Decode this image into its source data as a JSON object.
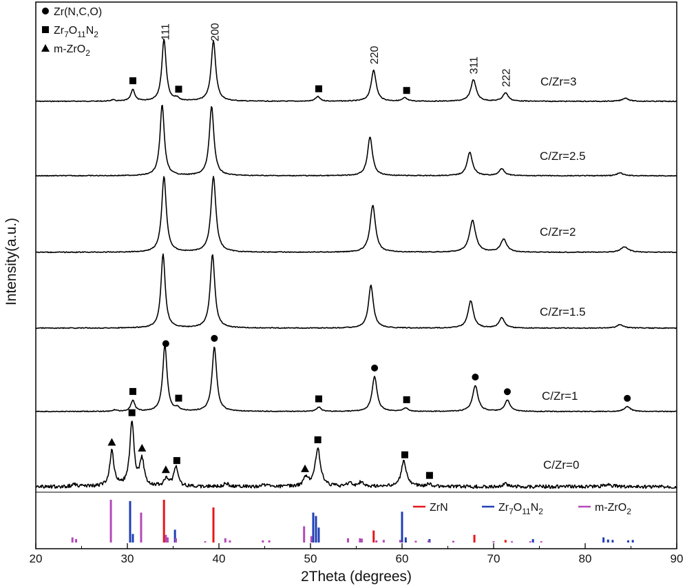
{
  "chart_data": {
    "type": "line",
    "title": "",
    "xlabel": "2Theta (degrees)",
    "ylabel": "Intensity(a.u.)",
    "xlim": [
      20,
      90
    ],
    "xticks": [
      20,
      30,
      40,
      50,
      60,
      70,
      80,
      90
    ],
    "y_units": "arbitrary (stacked, offset patterns)",
    "grid": false,
    "marker_legend": {
      "placement": "top-left",
      "entries": [
        {
          "marker": "circle",
          "label": "Zr(N,C,O)"
        },
        {
          "marker": "square",
          "label": "Zr7O11N2",
          "rich": [
            [
              "Zr",
              ""
            ],
            [
              "7",
              "sub"
            ],
            [
              "O",
              ""
            ],
            [
              "11",
              "sub"
            ],
            [
              "N",
              ""
            ],
            [
              "2",
              "sub"
            ]
          ]
        },
        {
          "marker": "triangle",
          "label": "m-ZrO2",
          "rich": [
            [
              "m-ZrO",
              ""
            ],
            [
              "2",
              "sub"
            ]
          ]
        }
      ]
    },
    "hkl_labels": [
      {
        "text": "111",
        "x": 34.1
      },
      {
        "text": "200",
        "x": 39.5
      },
      {
        "text": "220",
        "x": 56.9
      },
      {
        "text": "311",
        "x": 67.8
      },
      {
        "text": "222",
        "x": 71.3
      }
    ],
    "series": [
      {
        "name": "C/Zr=3",
        "peaks": [
          [
            28.4,
            0.02,
            0.25
          ],
          [
            30.6,
            0.18,
            0.25
          ],
          [
            34.0,
            0.95,
            0.28
          ],
          [
            35.4,
            0.04,
            0.25
          ],
          [
            39.4,
            0.92,
            0.3
          ],
          [
            50.8,
            0.07,
            0.3
          ],
          [
            56.9,
            0.48,
            0.32
          ],
          [
            60.3,
            0.05,
            0.3
          ],
          [
            67.8,
            0.33,
            0.35
          ],
          [
            71.3,
            0.13,
            0.35
          ],
          [
            84.4,
            0.05,
            0.4
          ]
        ],
        "markers": [
          {
            "x": 30.6,
            "shape": "square"
          },
          {
            "x": 35.6,
            "shape": "square"
          },
          {
            "x": 50.9,
            "shape": "square"
          },
          {
            "x": 60.5,
            "shape": "square"
          }
        ]
      },
      {
        "name": "C/Zr=2.5",
        "peaks": [
          [
            33.8,
            1.0,
            0.28
          ],
          [
            39.2,
            0.98,
            0.3
          ],
          [
            56.5,
            0.55,
            0.32
          ],
          [
            67.4,
            0.33,
            0.35
          ],
          [
            70.9,
            0.1,
            0.35
          ],
          [
            83.8,
            0.04,
            0.4
          ]
        ],
        "markers": []
      },
      {
        "name": "C/Zr=2",
        "peaks": [
          [
            34.0,
            1.0,
            0.3
          ],
          [
            39.4,
            1.0,
            0.32
          ],
          [
            56.8,
            0.62,
            0.35
          ],
          [
            67.7,
            0.42,
            0.4
          ],
          [
            71.1,
            0.17,
            0.4
          ],
          [
            84.3,
            0.07,
            0.5
          ]
        ],
        "markers": []
      },
      {
        "name": "C/Zr=1.5",
        "peaks": [
          [
            33.9,
            1.0,
            0.28
          ],
          [
            39.3,
            1.0,
            0.3
          ],
          [
            56.6,
            0.58,
            0.32
          ],
          [
            67.5,
            0.37,
            0.35
          ],
          [
            70.9,
            0.14,
            0.35
          ],
          [
            83.8,
            0.05,
            0.4
          ]
        ],
        "markers": []
      },
      {
        "name": "C/Zr=1",
        "peaks": [
          [
            28.6,
            0.02,
            0.25
          ],
          [
            30.6,
            0.16,
            0.25
          ],
          [
            34.1,
            0.95,
            0.28
          ],
          [
            35.5,
            0.04,
            0.25
          ],
          [
            39.5,
            0.92,
            0.3
          ],
          [
            50.9,
            0.06,
            0.3
          ],
          [
            57.0,
            0.5,
            0.32
          ],
          [
            60.4,
            0.05,
            0.3
          ],
          [
            68.0,
            0.37,
            0.35
          ],
          [
            71.5,
            0.16,
            0.35
          ],
          [
            84.6,
            0.07,
            0.4
          ]
        ],
        "markers": [
          {
            "x": 30.6,
            "shape": "square"
          },
          {
            "x": 34.2,
            "shape": "circle"
          },
          {
            "x": 35.6,
            "shape": "square"
          },
          {
            "x": 39.5,
            "shape": "circle"
          },
          {
            "x": 50.9,
            "shape": "square"
          },
          {
            "x": 57.0,
            "shape": "circle"
          },
          {
            "x": 60.5,
            "shape": "square"
          },
          {
            "x": 68.0,
            "shape": "circle"
          },
          {
            "x": 71.5,
            "shape": "circle"
          },
          {
            "x": 84.6,
            "shape": "circle"
          }
        ]
      },
      {
        "name": "C/Zr=0",
        "noisy": true,
        "peaks": [
          [
            24.2,
            0.03,
            0.3
          ],
          [
            28.3,
            0.55,
            0.28
          ],
          [
            30.5,
            1.0,
            0.28
          ],
          [
            31.6,
            0.41,
            0.28
          ],
          [
            34.3,
            0.12,
            0.3
          ],
          [
            35.3,
            0.3,
            0.28
          ],
          [
            40.8,
            0.05,
            0.3
          ],
          [
            45.0,
            0.03,
            0.3
          ],
          [
            49.5,
            0.13,
            0.3
          ],
          [
            50.8,
            0.6,
            0.35
          ],
          [
            54.3,
            0.06,
            0.3
          ],
          [
            55.5,
            0.07,
            0.3
          ],
          [
            60.2,
            0.4,
            0.35
          ],
          [
            63.0,
            0.04,
            0.35
          ],
          [
            71.3,
            0.04,
            0.35
          ],
          [
            82.5,
            0.04,
            0.4
          ]
        ],
        "markers": [
          {
            "x": 28.3,
            "shape": "triangle"
          },
          {
            "x": 30.5,
            "shape": "square"
          },
          {
            "x": 31.6,
            "shape": "triangle"
          },
          {
            "x": 34.2,
            "shape": "triangle"
          },
          {
            "x": 35.4,
            "shape": "square"
          },
          {
            "x": 49.4,
            "shape": "triangle"
          },
          {
            "x": 50.8,
            "shape": "square"
          },
          {
            "x": 60.3,
            "shape": "square"
          },
          {
            "x": 63.0,
            "shape": "square"
          }
        ]
      }
    ],
    "reference_patterns": {
      "legend_placement": "bottom panel, top-right",
      "entries": [
        {
          "name": "ZrN",
          "color": "#e8151b",
          "lines": [
            [
              34.0,
              1.0
            ],
            [
              39.4,
              0.82
            ],
            [
              56.9,
              0.28
            ],
            [
              67.9,
              0.18
            ],
            [
              71.3,
              0.06
            ]
          ]
        },
        {
          "name": "Zr7O11N2",
          "rich": [
            [
              "Zr",
              ""
            ],
            [
              "7",
              "sub"
            ],
            [
              "O",
              ""
            ],
            [
              "11",
              "sub"
            ],
            [
              "N",
              ""
            ],
            [
              "2",
              "sub"
            ]
          ],
          "color": "#1f3fb5",
          "lines": [
            [
              30.3,
              0.97
            ],
            [
              30.6,
              0.2
            ],
            [
              35.2,
              0.3
            ],
            [
              50.3,
              0.7
            ],
            [
              50.6,
              0.62
            ],
            [
              50.9,
              0.35
            ],
            [
              60.0,
              0.72
            ],
            [
              60.4,
              0.12
            ],
            [
              63.0,
              0.08
            ],
            [
              74.3,
              0.08
            ],
            [
              82.0,
              0.12
            ],
            [
              82.5,
              0.07
            ],
            [
              83.0,
              0.06
            ],
            [
              84.7,
              0.05
            ],
            [
              85.2,
              0.06
            ]
          ]
        },
        {
          "name": "m-ZrO2",
          "rich": [
            [
              "m-ZrO",
              ""
            ],
            [
              "2",
              "sub"
            ]
          ],
          "color": "#b349b8",
          "lines": [
            [
              24.0,
              0.12
            ],
            [
              24.4,
              0.08
            ],
            [
              28.2,
              1.0
            ],
            [
              31.5,
              0.7
            ],
            [
              34.2,
              0.18
            ],
            [
              34.4,
              0.12
            ],
            [
              35.3,
              0.1
            ],
            [
              38.5,
              0.03
            ],
            [
              40.7,
              0.1
            ],
            [
              41.2,
              0.05
            ],
            [
              44.8,
              0.05
            ],
            [
              45.5,
              0.05
            ],
            [
              49.3,
              0.38
            ],
            [
              50.1,
              0.15
            ],
            [
              54.1,
              0.1
            ],
            [
              55.4,
              0.1
            ],
            [
              55.6,
              0.09
            ],
            [
              57.2,
              0.05
            ],
            [
              58.0,
              0.06
            ],
            [
              59.8,
              0.06
            ],
            [
              61.5,
              0.04
            ],
            [
              62.9,
              0.05
            ],
            [
              65.6,
              0.04
            ],
            [
              70.0,
              0.03
            ],
            [
              72.0,
              0.03
            ],
            [
              74.0,
              0.03
            ],
            [
              75.2,
              0.03
            ]
          ]
        }
      ]
    }
  }
}
